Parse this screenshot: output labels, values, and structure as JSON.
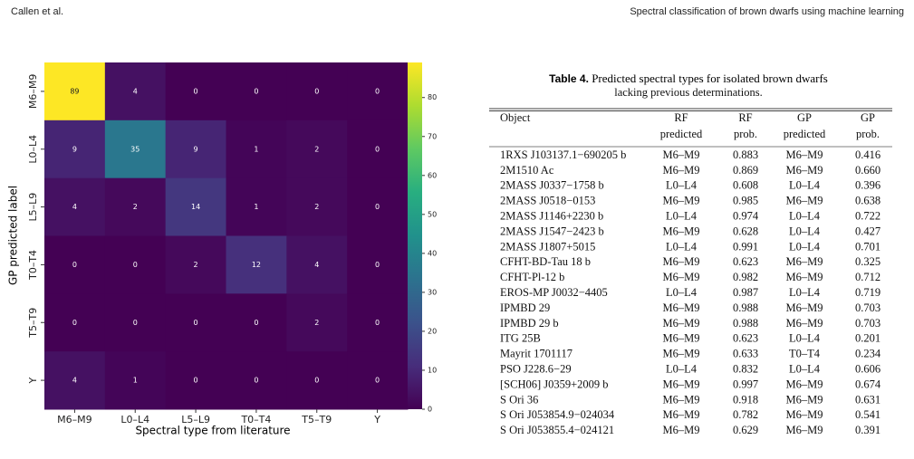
{
  "header": {
    "left": "Callen et al.",
    "right": "Spectral classification of brown dwarfs using machine learning"
  },
  "chart_data": {
    "type": "heatmap",
    "x_label": "Spectral type from literature",
    "y_label": "GP predicted label",
    "x_categories": [
      "M6–M9",
      "L0–L4",
      "L5–L9",
      "T0–T4",
      "T5–T9",
      "Y"
    ],
    "y_categories": [
      "M6–M9",
      "L0–L4",
      "L5–L9",
      "T0–T4",
      "T5–T9",
      "Y"
    ],
    "values": [
      [
        89,
        4,
        0,
        0,
        0,
        0
      ],
      [
        9,
        35,
        9,
        1,
        2,
        0
      ],
      [
        4,
        2,
        14,
        1,
        2,
        0
      ],
      [
        0,
        0,
        2,
        12,
        4,
        0
      ],
      [
        0,
        0,
        0,
        0,
        2,
        0
      ],
      [
        4,
        1,
        0,
        0,
        0,
        0
      ]
    ],
    "colormap": "viridis",
    "zlim": [
      0,
      89
    ],
    "zticks": [
      0,
      10,
      20,
      30,
      40,
      50,
      60,
      70,
      80
    ]
  },
  "table": {
    "label": "Table 4.",
    "caption": "Predicted spectral types for isolated brown dwarfs lacking previous determinations.",
    "columns": [
      {
        "lines": [
          "Object"
        ]
      },
      {
        "lines": [
          "RF",
          "predicted"
        ]
      },
      {
        "lines": [
          "RF",
          "prob."
        ]
      },
      {
        "lines": [
          "GP",
          "predicted"
        ]
      },
      {
        "lines": [
          "GP",
          "prob."
        ]
      }
    ],
    "rows": [
      [
        "1RXS J103137.1−690205 b",
        "M6–M9",
        "0.883",
        "M6–M9",
        "0.416"
      ],
      [
        "2M1510 Ac",
        "M6–M9",
        "0.869",
        "M6–M9",
        "0.660"
      ],
      [
        "2MASS J0337−1758 b",
        "L0–L4",
        "0.608",
        "L0–L4",
        "0.396"
      ],
      [
        "2MASS J0518−0153",
        "M6–M9",
        "0.985",
        "M6–M9",
        "0.638"
      ],
      [
        "2MASS J1146+2230 b",
        "L0–L4",
        "0.974",
        "L0–L4",
        "0.722"
      ],
      [
        "2MASS J1547−2423 b",
        "M6–M9",
        "0.628",
        "L0–L4",
        "0.427"
      ],
      [
        "2MASS J1807+5015",
        "L0–L4",
        "0.991",
        "L0–L4",
        "0.701"
      ],
      [
        "CFHT-BD-Tau 18 b",
        "M6–M9",
        "0.623",
        "M6–M9",
        "0.325"
      ],
      [
        "CFHT-Pl-12 b",
        "M6–M9",
        "0.982",
        "M6–M9",
        "0.712"
      ],
      [
        "EROS-MP J0032−4405",
        "L0–L4",
        "0.987",
        "L0–L4",
        "0.719"
      ],
      [
        "IPMBD 29",
        "M6–M9",
        "0.988",
        "M6–M9",
        "0.703"
      ],
      [
        "IPMBD 29 b",
        "M6–M9",
        "0.988",
        "M6–M9",
        "0.703"
      ],
      [
        "ITG 25B",
        "M6–M9",
        "0.623",
        "L0–L4",
        "0.201"
      ],
      [
        "Mayrit 1701117",
        "M6–M9",
        "0.633",
        "T0–T4",
        "0.234"
      ],
      [
        "PSO J228.6−29",
        "L0–L4",
        "0.832",
        "L0–L4",
        "0.606"
      ],
      [
        "[SCH06] J0359+2009 b",
        "M6–M9",
        "0.997",
        "M6–M9",
        "0.674"
      ],
      [
        "S Ori 36",
        "M6–M9",
        "0.918",
        "M6–M9",
        "0.631"
      ],
      [
        "S Ori J053854.9−024034",
        "M6–M9",
        "0.782",
        "M6–M9",
        "0.541"
      ],
      [
        "S Ori J053855.4−024121",
        "M6–M9",
        "0.629",
        "M6–M9",
        "0.391"
      ]
    ]
  }
}
